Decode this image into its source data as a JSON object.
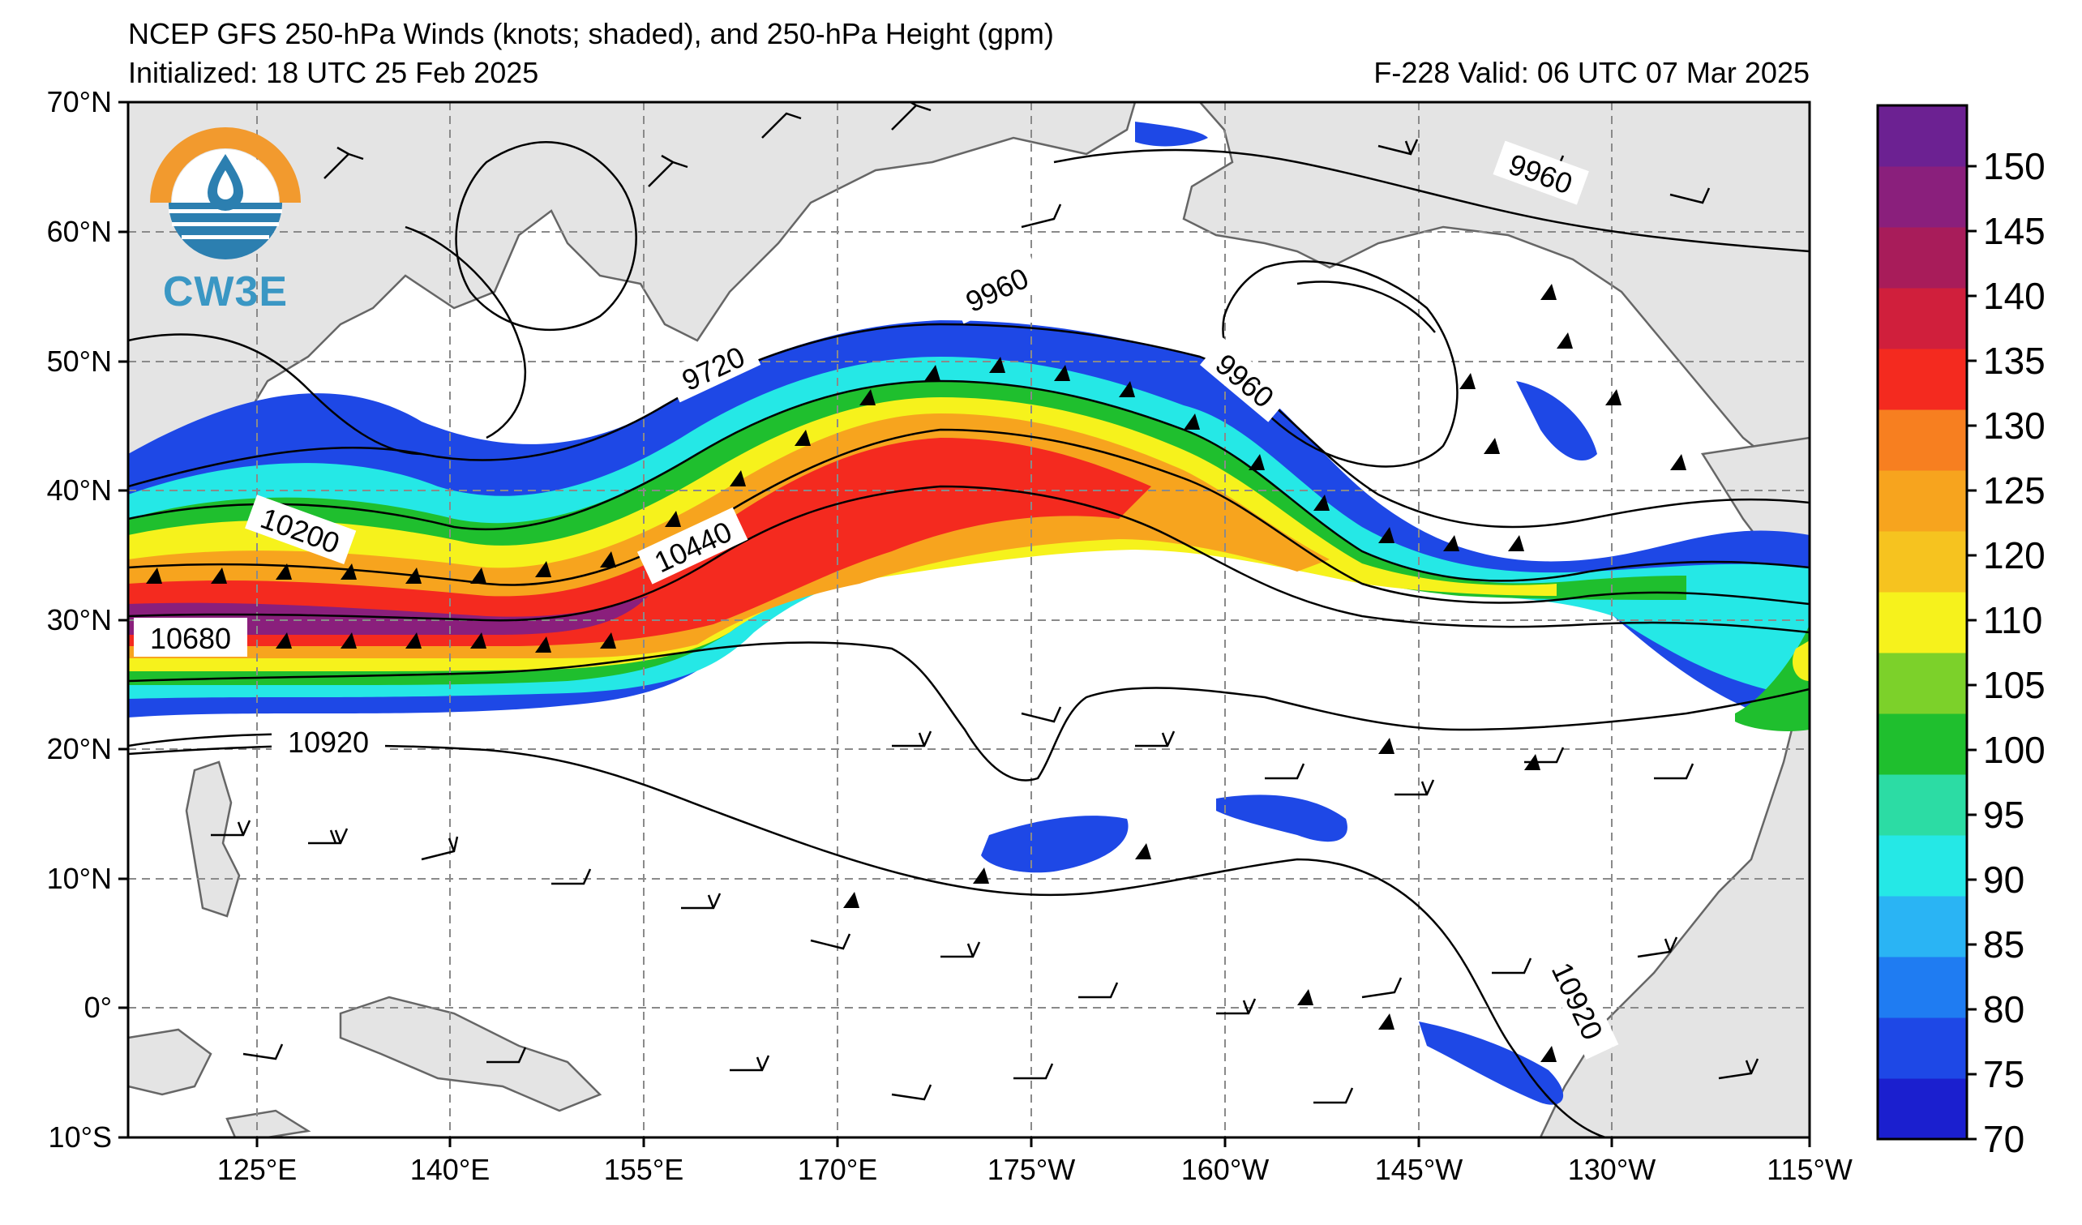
{
  "header": {
    "title": "NCEP GFS 250-hPa Winds (knots; shaded), and 250-hPa Height (gpm)",
    "initialized": "Initialized: 18 UTC 25 Feb 2025",
    "valid": "F-228  Valid: 06 UTC 07 Mar 2025"
  },
  "logo": {
    "text": "CW3E",
    "icon": "cw3e-logo-icon"
  },
  "map": {
    "lon_ticks": [
      "125°E",
      "140°E",
      "155°E",
      "170°E",
      "175°W",
      "160°W",
      "145°W",
      "130°W",
      "115°W"
    ],
    "lat_ticks": [
      "70°N",
      "60°N",
      "50°N",
      "40°N",
      "30°N",
      "20°N",
      "10°N",
      "0°",
      "10°S"
    ],
    "contour_labels": [
      "9960",
      "9720",
      "9960",
      "9960",
      "10200",
      "10440",
      "10680",
      "10920",
      "10920"
    ]
  },
  "colorbar": {
    "levels": [
      "70",
      "75",
      "80",
      "85",
      "90",
      "95",
      "100",
      "105",
      "110",
      "120",
      "125",
      "130",
      "135",
      "140",
      "145",
      "150"
    ],
    "colors": [
      "#1b1fcf",
      "#1e48e6",
      "#1f7cf2",
      "#2ab4f4",
      "#25e8e6",
      "#2cdca4",
      "#1fbf2e",
      "#7cd12a",
      "#f6f21c",
      "#f6c31f",
      "#f7a41e",
      "#f77f20",
      "#f42a1f",
      "#d01f3c",
      "#a81c5a",
      "#8a1f7c",
      "#6c2192"
    ]
  }
}
